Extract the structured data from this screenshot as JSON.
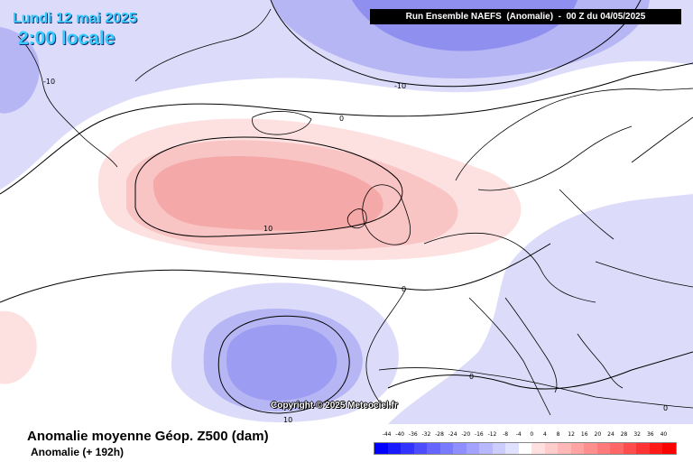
{
  "header": {
    "date": "Lundi 12 mai 2025",
    "time": "2:00 locale",
    "run_info": "Run Ensemble NAEFS  (Anomalie)  -  00 Z du 04/05/2025"
  },
  "map": {
    "copyright": "Copyright © 2025 Meteociel.fr",
    "contour_labels": [
      "-10",
      "0",
      "10",
      "0",
      "10",
      "0",
      "0",
      "-10",
      "0"
    ],
    "colors": {
      "negative_strong": "#8f8ff0",
      "negative_mid": "#b6b6f4",
      "negative_light": "#dcdcfa",
      "positive_light": "#fde0e0",
      "positive_mid": "#f8b8b8",
      "positive_strong": "#f59a9a",
      "land_line": "#000000"
    }
  },
  "footer": {
    "title": "Anomalie moyenne Géop. Z500 (dam)",
    "subtitle": "Anomalie (+ 192h)"
  },
  "legend": {
    "labels": [
      "-44",
      "-40",
      "-36",
      "-32",
      "-28",
      "-24",
      "-20",
      "-16",
      "-12",
      "-8",
      "-4",
      "0",
      "4",
      "8",
      "12",
      "16",
      "20",
      "24",
      "28",
      "32",
      "36",
      "40"
    ],
    "colors": [
      "#0000ff",
      "#1a1aff",
      "#3333ff",
      "#4d4dff",
      "#6666ff",
      "#7a7aff",
      "#8f8fff",
      "#a3a3ff",
      "#b8b8ff",
      "#ccccff",
      "#e0e0ff",
      "#ffffff",
      "#ffe0e0",
      "#ffcccc",
      "#ffb8b8",
      "#ffa3a3",
      "#ff8f8f",
      "#ff7a7a",
      "#ff6666",
      "#ff4d4d",
      "#ff3333",
      "#ff1a1a",
      "#ff0000"
    ]
  }
}
